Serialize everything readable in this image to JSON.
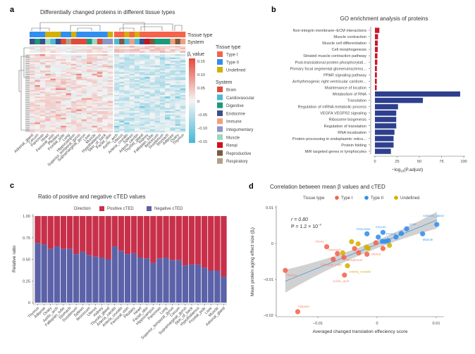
{
  "colors": {
    "type_i": "#f4634a",
    "type_ii": "#2f8ef0",
    "undefined": "#d4b000",
    "positive": "#c8304a",
    "negative": "#5b62a8",
    "go_up": "#c8182c",
    "go_down": "#2e3f8e",
    "heat_pos": "#e8483a",
    "heat_neg": "#45b8d8",
    "system": {
      "Brain": "#e04a3a",
      "Cardiovascular": "#4cbad6",
      "Digestive": "#1a9a7a",
      "Endocrine": "#3a4f8a",
      "Immune": "#f0a080",
      "Integumentary": "#8b96c4",
      "Muscle": "#9fd6c0",
      "Renal": "#d0101a",
      "Reproductive": "#7a5a40",
      "Respiratory": "#b0a088"
    }
  },
  "chart_data": [
    {
      "panel": "a",
      "type": "heatmap",
      "title": "Differentially changed proteins in different tissue types",
      "annotation_rows": [
        "Tissue type",
        "System"
      ],
      "colorbar": {
        "label": "β",
        "label_sub": "t",
        "label_suffix": " value",
        "ticks": [
          "0.15",
          "0.10",
          "0.05",
          "0",
          "−0.05",
          "−0.10",
          "−0.15"
        ],
        "range": [
          -0.15,
          0.15
        ]
      },
      "clusters": [
        {
          "columns": [
            "Adrenal_gland",
            "Cecum",
            "Pancreas",
            "Heart",
            "Femoral_vein",
            "Pituitary",
            "Frontal_pole",
            "Lung",
            "Hippocampus",
            "Superior_temporal_gyrus",
            "Supramarginal_gyrus",
            "Liver",
            "Muscle",
            "Hypothalamus",
            "Skin_of_back",
            "Facial_skin"
          ],
          "tissue_type": [
            "Type II",
            "Type II",
            "Type II",
            "Undefined",
            "Undefined",
            "Undefined",
            "Type II",
            "Type II",
            "Undefined",
            "Type II",
            "Type II",
            "Type II",
            "Type II",
            "Type II",
            "Type II",
            "Undefined"
          ],
          "system": [
            "Endocrine",
            "Digestive",
            "Endocrine",
            "Muscle",
            "Cardiovascular",
            "Endocrine",
            "Brain",
            "Respiratory",
            "Brain",
            "Brain",
            "Brain",
            "Digestive",
            "Muscle",
            "Brain",
            "Integumentary",
            "Integumentary"
          ],
          "tendency": "mostly positive"
        },
        {
          "columns": [
            "Aortic_arch",
            "Uterus",
            "Arteria_cruralis",
            "Spleen",
            "Arteria_carotis",
            "Thyroid_gland",
            "Kidney",
            "Fallopian_tube",
            "Ileocecum",
            "Duodenum",
            "Stomach",
            "Adipose",
            "Ovary",
            "Thymus"
          ],
          "tissue_type": [
            "Type I",
            "Type I",
            "Undefined",
            "Type I",
            "Undefined",
            "Type I",
            "Type I",
            "Type I",
            "Type I",
            "Type I",
            "Type I",
            "Type I",
            "Type I",
            "Type I"
          ],
          "system": [
            "Cardiovascular",
            "Reproductive",
            "Cardiovascular",
            "Immune",
            "Cardiovascular",
            "Endocrine",
            "Renal",
            "Reproductive",
            "Digestive",
            "Digestive",
            "Digestive",
            "Immune",
            "Reproductive",
            "Immune"
          ],
          "tendency": "mostly negative"
        }
      ],
      "legend": {
        "tissue_type_title": "Tissue type",
        "tissue_types": [
          "Type I",
          "Type II",
          "Undefined"
        ],
        "system_title": "System",
        "systems": [
          "Brain",
          "Cardiovascular",
          "Digestive",
          "Endocrine",
          "Immune",
          "Integumentary",
          "Muscle",
          "Renal",
          "Reproductive",
          "Respiratory"
        ]
      }
    },
    {
      "panel": "b",
      "type": "bar",
      "orientation": "horizontal",
      "title": "GO enrichment analysis of proteins",
      "xlabel_pre": "−log",
      "xlabel_sub": "10",
      "xlabel_post": "(P.adjust)",
      "xlim": [
        0,
        100
      ],
      "xticks": [
        "0",
        "25",
        "50",
        "75",
        "100"
      ],
      "categories": [
        "Non-integrin membrane–ECM interactions",
        "Muscle contraction",
        "Muscle cell differentiation",
        "Cell morphogenesis",
        "Striated muscle contraction pathway",
        "Post-translational protein phosphorylati...",
        "Primary focal segmental glomeruloscleros...",
        "PPAR signaling pathway",
        "Arrhythmogenic right ventricular cardiom...",
        "Maintenance of location",
        "Metabolism of RNA",
        "Translation",
        "Regulation of mRNA metabolic process",
        "VEGFA VEGFR2 signaling",
        "Ribosome biogenesis",
        "Regulation of translation",
        "RNA localization",
        "Protein processing in endoplasmic reticu...",
        "Protein folding",
        "MiR targeted genes in lymphocytes"
      ],
      "values": [
        5,
        3.5,
        3.2,
        3.2,
        2.8,
        2.7,
        2.2,
        2.2,
        2.1,
        2,
        96,
        54,
        26,
        24,
        24,
        24,
        22,
        21,
        21,
        18
      ],
      "groups": [
        "up",
        "up",
        "up",
        "up",
        "up",
        "up",
        "up",
        "up",
        "up",
        "up",
        "down",
        "down",
        "down",
        "down",
        "down",
        "down",
        "down",
        "down",
        "down",
        "down"
      ]
    },
    {
      "panel": "c",
      "type": "bar",
      "stacked": true,
      "title": "Ratio of positive and negative cTED values",
      "ylabel": "Relative ratio",
      "ylim": [
        0,
        1
      ],
      "yticks": [
        "0",
        "0.25",
        "0.50",
        "0.75",
        "1.00"
      ],
      "legend_title": "Direction",
      "categories": [
        "Thymus",
        "Adipose",
        "Ovary",
        "Aortic_arch",
        "Fallopian_tube",
        "Stomach",
        "Duodenum",
        "Spleen",
        "Ileocecum",
        "Uterus",
        "Kidney",
        "Thyroid_gland",
        "Arteria_carotis",
        "Arteria_cruralis",
        "Femoral_vein",
        "Pituitary",
        "Heart",
        "Facial_skin",
        "Hippocampus",
        "Pancreas",
        "Lung",
        "Superior_temporal_gyrus",
        "Cecum",
        "Supramarginal_gyrus",
        "Skin_of_back",
        "Hypothalamus",
        "Frontal_pole",
        "Liver",
        "Muscle",
        "Adrenal_gland"
      ],
      "series": [
        {
          "name": "Positive cTED",
          "values": [
            0.31,
            0.33,
            0.38,
            0.35,
            0.38,
            0.38,
            0.44,
            0.41,
            0.45,
            0.47,
            0.48,
            0.5,
            0.35,
            0.4,
            0.44,
            0.43,
            0.48,
            0.49,
            0.54,
            0.49,
            0.48,
            0.51,
            0.51,
            0.57,
            0.56,
            0.56,
            0.6,
            0.63,
            0.63,
            0.7
          ]
        },
        {
          "name": "Negative cTED",
          "values": [
            0.69,
            0.67,
            0.62,
            0.65,
            0.62,
            0.62,
            0.56,
            0.59,
            0.55,
            0.53,
            0.52,
            0.5,
            0.65,
            0.6,
            0.56,
            0.57,
            0.52,
            0.51,
            0.46,
            0.51,
            0.52,
            0.49,
            0.49,
            0.43,
            0.44,
            0.44,
            0.4,
            0.37,
            0.37,
            0.3
          ]
        }
      ]
    },
    {
      "panel": "d",
      "type": "scatter",
      "title": "Correlation between mean β values and cTED",
      "xlabel": "Averaged changed translation effeciency score",
      "ylabel": "Mean protein aging effect size (β",
      "ylabel_sub": "t",
      "ylabel_post": ")",
      "xlim": [
        -0.017,
        0.0113
      ],
      "ylim": [
        -0.0205,
        0.0105
      ],
      "xticks": [
        {
          "v": -0.01,
          "label": "−0.01"
        },
        {
          "v": 0,
          "label": "0"
        },
        {
          "v": 0.01,
          "label": "0.01"
        }
      ],
      "yticks": [
        {
          "v": 0.01,
          "label": "0.01"
        },
        {
          "v": 0,
          "label": "0"
        },
        {
          "v": -0.01,
          "label": "−0.01"
        },
        {
          "v": -0.02,
          "label": "−0.02"
        }
      ],
      "legend_title": "Tissue type",
      "legend": [
        "Type I",
        "Type II",
        "Undefined"
      ],
      "stats": {
        "r": "r = 0.80",
        "p_pre": "P = 1.2 × 10",
        "p_exp": "−7"
      },
      "fit_line": {
        "x": [
          -0.0155,
          0.0101
        ],
        "y": [
          -0.0105,
          0.0065
        ]
      },
      "points": [
        {
          "label": "Thymus",
          "type": "Type I",
          "x": -0.0155,
          "y": -0.0075
        },
        {
          "label": "Adipose",
          "type": "Type I",
          "x": -0.0134,
          "y": -0.019
        },
        {
          "label": "Ovary",
          "type": "Type I",
          "x": -0.0085,
          "y": -0.0009
        },
        {
          "label": "Stomach",
          "type": "Type I",
          "x": -0.0067,
          "y": -0.0028
        },
        {
          "label": "Fallopian_tube",
          "type": "Type I",
          "x": -0.0074,
          "y": -0.0044
        },
        {
          "label": "Duodenum",
          "type": "Type I",
          "x": -0.0056,
          "y": -0.0039
        },
        {
          "label": "Aortic_arch",
          "type": "Type I",
          "x": -0.0055,
          "y": -0.0088
        },
        {
          "label": "Uterus",
          "type": "Type I",
          "x": -0.0017,
          "y": -0.003
        },
        {
          "label": "",
          "type": "Type I",
          "x": -0.0038,
          "y": -0.0014
        },
        {
          "label": "",
          "type": "Type I",
          "x": -0.0031,
          "y": -0.0026
        },
        {
          "label": "",
          "type": "Type I",
          "x": -0.0002,
          "y": 0.0002
        },
        {
          "label": "",
          "type": "Type I",
          "x": 0.001,
          "y": -0.0014
        },
        {
          "label": "Arteria_cruralis",
          "type": "Undefined",
          "x": -0.005,
          "y": -0.0062
        },
        {
          "label": "",
          "type": "Undefined",
          "x": -0.0043,
          "y": 0.0005
        },
        {
          "label": "",
          "type": "Undefined",
          "x": -0.0032,
          "y": -0.0001
        },
        {
          "label": "",
          "type": "Undefined",
          "x": -0.0058,
          "y": -0.0026
        },
        {
          "label": "",
          "type": "Undefined",
          "x": -0.0018,
          "y": -0.001
        },
        {
          "label": "",
          "type": "Undefined",
          "x": -0.0015,
          "y": -0.0013
        },
        {
          "label": "",
          "type": "Undefined",
          "x": 0.0021,
          "y": -0.0005
        },
        {
          "label": "Pancreas",
          "type": "Type II",
          "x": -0.0017,
          "y": 0.0027
        },
        {
          "label": "Cecum",
          "type": "Type II",
          "x": 0.001,
          "y": 0.0031
        },
        {
          "label": "Adrenal_gland",
          "type": "Type II",
          "x": 0.0101,
          "y": 0.0053
        },
        {
          "label": "Liver",
          "type": "Type II",
          "x": 0.005,
          "y": 0.0041
        },
        {
          "label": "Muscle",
          "type": "Type II",
          "x": 0.0077,
          "y": 0.0027
        },
        {
          "label": "Frontal_pole",
          "type": "Type II",
          "x": 0.0032,
          "y": 0.0018
        },
        {
          "label": "",
          "type": "Type II",
          "x": 0.0002,
          "y": 0.0018
        },
        {
          "label": "",
          "type": "Type II",
          "x": 0.0009,
          "y": 0.0006
        },
        {
          "label": "",
          "type": "Type II",
          "x": 0.0014,
          "y": 0.0006
        },
        {
          "label": "",
          "type": "Type II",
          "x": 0.0019,
          "y": 0.0008
        },
        {
          "label": "",
          "type": "Type II",
          "x": 0.0041,
          "y": 0.0028
        }
      ]
    }
  ],
  "panel_labels": [
    "a",
    "b",
    "c",
    "d"
  ]
}
